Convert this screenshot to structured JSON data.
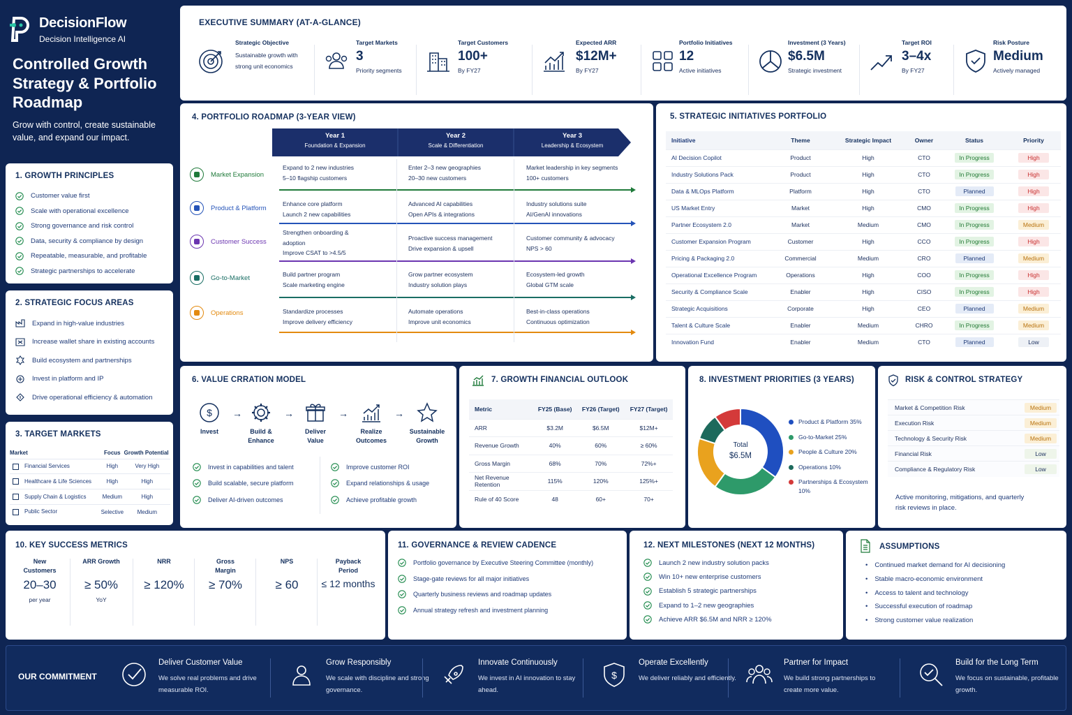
{
  "brand": {
    "name": "DecisionFlow",
    "tagline": "Decision Intelligence AI"
  },
  "page": {
    "title": "Controlled Growth Strategy & Portfolio Roadmap",
    "subtitle": "Grow with control, create sustainable value, and expand our impact."
  },
  "growth_principles": {
    "title": "1.  GROWTH PRINCIPLES",
    "items": [
      "Customer value first",
      "Scale with operational excellence",
      "Strong governance and risk control",
      "Data, security & compliance by design",
      "Repeatable, measurable, and profitable",
      "Strategic partnerships to accelerate"
    ]
  },
  "focus_areas": {
    "title": "2.  STRATEGIC FOCUS AREAS",
    "items": [
      "Expand in high-value industries",
      "Increase wallet share in existing accounts",
      "Build ecosystem and partnerships",
      "Invest in platform and IP",
      "Drive operational efficiency & automation"
    ]
  },
  "target_markets": {
    "title": "3.  TARGET MARKETS",
    "headers": [
      "Market",
      "Focus",
      "Growth Potential"
    ],
    "rows": [
      [
        "Financial Services",
        "High",
        "Very High"
      ],
      [
        "Healthcare & Life Sciences",
        "High",
        "High"
      ],
      [
        "Supply Chain & Logistics",
        "Medium",
        "High"
      ],
      [
        "Public Sector",
        "Selective",
        "Medium"
      ]
    ]
  },
  "exec": {
    "title": "EXECUTIVE SUMMARY (AT-A-GLANCE)",
    "items": [
      {
        "label": "Strategic Objective",
        "text": "Sustainable growth with strong unit economics",
        "icon": "target-icon"
      },
      {
        "label": "Target Markets",
        "value": "3",
        "sub": "Priority segments",
        "icon": "users-icon"
      },
      {
        "label": "Target Customers",
        "value": "100+",
        "sub": "By FY27",
        "icon": "building-icon"
      },
      {
        "label": "Expected ARR",
        "value": "$12M+",
        "sub": "By FY27",
        "icon": "growth-chart-icon"
      },
      {
        "label": "Portfolio Initiatives",
        "value": "12",
        "sub": "Active initiatives",
        "icon": "grid-icon"
      },
      {
        "label": "Investment (3 Years)",
        "value": "$6.5M",
        "sub": "Strategic investment",
        "icon": "pie-icon"
      },
      {
        "label": "Target ROI",
        "value": "3–4x",
        "sub": "By FY27",
        "icon": "trend-up-icon"
      },
      {
        "label": "Risk Posture",
        "value": "Medium",
        "sub": "Actively managed",
        "icon": "shield-check-icon"
      }
    ]
  },
  "roadmap": {
    "title": "4.  PORTFOLIO ROADMAP (3-YEAR VIEW)",
    "years": [
      {
        "name": "Year 1",
        "sub": "Foundation & Expansion"
      },
      {
        "name": "Year 2",
        "sub": "Scale & Differentiation"
      },
      {
        "name": "Year 3",
        "sub": "Leadership & Ecosystem"
      }
    ],
    "rows": [
      {
        "name": "Market Expansion",
        "color": "#1f7a3a",
        "cells": [
          "Expand to 2 new industries\n5–10 flagship customers",
          "Enter 2–3 new geographies\n20–30 new customers",
          "Market leadership in key segments\n100+ customers"
        ]
      },
      {
        "name": "Product & Platform",
        "color": "#2453b8",
        "cells": [
          "Enhance core platform\nLaunch 2 new capabilities",
          "Advanced AI capabilities\nOpen APIs & integrations",
          "Industry solutions suite\nAI/GenAI innovations"
        ]
      },
      {
        "name": "Customer Success",
        "color": "#6b35b0",
        "cells": [
          "Strengthen onboarding &\nadoption\nImprove CSAT to >4.5/5",
          "Proactive success management\nDrive expansion & upsell",
          "Customer community & advocacy\nNPS > 60"
        ]
      },
      {
        "name": "Go-to-Market",
        "color": "#1a6e64",
        "cells": [
          "Build partner program\nScale marketing engine",
          "Grow partner ecosystem\nIndustry solution plays",
          "Ecosystem-led growth\nGlobal GTM scale"
        ]
      },
      {
        "name": "Operations",
        "color": "#e38a0f",
        "cells": [
          "Standardize processes\nImprove delivery efficiency",
          "Automate operations\nImprove unit economics",
          "Best-in-class operations\nContinuous optimization"
        ]
      }
    ]
  },
  "initiatives": {
    "title": "5.  STRATEGIC INITIATIVES PORTFOLIO",
    "headers": [
      "Initiative",
      "Theme",
      "Strategic Impact",
      "Owner",
      "Status",
      "Priority"
    ],
    "rows": [
      [
        "AI Decision Copilot",
        "Product",
        "High",
        "CTO",
        "In Progress",
        "High"
      ],
      [
        "Industry Solutions Pack",
        "Product",
        "High",
        "CTO",
        "In Progress",
        "High"
      ],
      [
        "Data & MLOps Platform",
        "Platform",
        "High",
        "CTO",
        "Planned",
        "High"
      ],
      [
        "US Market Entry",
        "Market",
        "High",
        "CMO",
        "In Progress",
        "High"
      ],
      [
        "Partner Ecosystem 2.0",
        "Market",
        "Medium",
        "CMO",
        "In Progress",
        "Medium"
      ],
      [
        "Customer Expansion Program",
        "Customer",
        "High",
        "CCO",
        "In Progress",
        "High"
      ],
      [
        "Pricing & Packaging 2.0",
        "Commercial",
        "Medium",
        "CRO",
        "Planned",
        "Medium"
      ],
      [
        "Operational Excellence Program",
        "Operations",
        "High",
        "COO",
        "In Progress",
        "High"
      ],
      [
        "Security & Compliance Scale",
        "Enabler",
        "High",
        "CISO",
        "In Progress",
        "High"
      ],
      [
        "Strategic Acquisitions",
        "Corporate",
        "High",
        "CEO",
        "Planned",
        "Medium"
      ],
      [
        "Talent & Culture Scale",
        "Enabler",
        "Medium",
        "CHRO",
        "In Progress",
        "Medium"
      ],
      [
        "Innovation Fund",
        "Enabler",
        "Medium",
        "CTO",
        "Planned",
        "Low"
      ]
    ]
  },
  "value_model": {
    "title": "6.  VALUE CRRATION MODEL",
    "steps": [
      "Invest",
      "Build &\nEnhance",
      "Deliver\nValue",
      "Realize\nOutcomes",
      "Sustainable\nGrowth"
    ],
    "left": [
      "Invest in capabilities and talent",
      "Build scalable, secure platform",
      "Deliver AI-driven outcomes"
    ],
    "right": [
      "Improve customer ROI",
      "Expand relationships & usage",
      "Achieve profitable growth"
    ]
  },
  "financial": {
    "title": "7.  GROWTH FINANCIAL OUTLOOK",
    "headers": [
      "Metric",
      "FY25 (Base)",
      "FY26 (Target)",
      "FY27 (Target)"
    ],
    "rows": [
      [
        "ARR",
        "$3.2M",
        "$6.5M",
        "$12M+"
      ],
      [
        "Revenue Growth",
        "40%",
        "60%",
        "≥ 60%"
      ],
      [
        "Gross Margin",
        "68%",
        "70%",
        "72%+"
      ],
      [
        "Net Revenue Retention",
        "115%",
        "120%",
        "125%+"
      ],
      [
        "Rule of 40 Score",
        "48",
        "60+",
        "70+"
      ]
    ]
  },
  "investment": {
    "title": "8.  INVESTMENT PRIORITIES (3 YEARS)",
    "center_label": "Total",
    "center_value": "$6.5M"
  },
  "chart_data": {
    "type": "pie",
    "title": "",
    "labels": [
      "Product & Platform 35%",
      "Go-to-Market 25%",
      "People & Culture 20%",
      "Operations 10%",
      "Partnerships & Ecosystem 10%"
    ],
    "values": [
      35,
      25,
      20,
      10,
      10
    ],
    "colors": [
      "#1f4fc0",
      "#2e9a6a",
      "#e9a21e",
      "#1d6a5c",
      "#d43a3a"
    ]
  },
  "risk": {
    "title": "RISK & CONTROL STRATEGY",
    "rows": [
      [
        "Market & Competition Risk",
        "Medium"
      ],
      [
        "Execution Risk",
        "Medium"
      ],
      [
        "Technology & Security Risk",
        "Medium"
      ],
      [
        "Financial Risk",
        "Low"
      ],
      [
        "Compliance & Regulatory Risk",
        "Low"
      ]
    ],
    "note": "Active monitoring, mitigations, and quarterly risk reviews in place."
  },
  "metrics": {
    "title": "10.  KEY SUCCESS METRICS",
    "items": [
      {
        "label": "New\nCustomers",
        "value": "20–30",
        "sub": "per year"
      },
      {
        "label": "ARR Growth",
        "value": "≥ 50%",
        "sub": "YoY"
      },
      {
        "label": "NRR",
        "value": "≥ 120%",
        "sub": ""
      },
      {
        "label": "Gross\nMargin",
        "value": "≥ 70%",
        "sub": ""
      },
      {
        "label": "NPS",
        "value": "≥ 60",
        "sub": ""
      },
      {
        "label": "Payback\nPeriod",
        "value": "≤ 12 months",
        "sub": ""
      }
    ]
  },
  "governance": {
    "title": "11.  GOVERNANCE & REVIEW CADENCE",
    "items": [
      "Portfolio governance by Executive Steering Committee (monthly)",
      "Stage-gate reviews for all major initiatives",
      "Quarterly business reviews and roadmap updates",
      "Annual strategy refresh and investment planning"
    ]
  },
  "milestones": {
    "title": "12.  NEXT MILESTONES (NEXT 12 MONTHS)",
    "items": [
      "Launch 2 new industry solution packs",
      "Win 10+ new enterprise customers",
      "Establish 5 strategic partnerships",
      "Expand to 1–2 new geographies",
      "Achieve ARR $6.5M and NRR ≥ 120%"
    ]
  },
  "assumptions": {
    "title": "ASSUMPTIONS",
    "items": [
      "Continued market demand for AI decisioning",
      "Stable macro-economic environment",
      "Access to talent and technology",
      "Successful execution of roadmap",
      "Strong customer value realization"
    ]
  },
  "commitment": {
    "title": "OUR COMMITMENT",
    "items": [
      {
        "title": "Deliver Customer Value",
        "desc": "We solve real problems and drive measurable ROI.",
        "icon": "check-circle-icon"
      },
      {
        "title": "Grow Responsibly",
        "desc": "We scale with discipline and strong governance.",
        "icon": "person-icon"
      },
      {
        "title": "Innovate Continuously",
        "desc": "We invest in AI innovation to stay ahead.",
        "icon": "rocket-icon"
      },
      {
        "title": "Operate Excellently",
        "desc": "We deliver reliably and efficiently.",
        "icon": "shield-dollar-icon"
      },
      {
        "title": "Partner for Impact",
        "desc": "We build strong partnerships to create more value.",
        "icon": "team-icon"
      },
      {
        "title": "Build for the Long Term",
        "desc": "We focus on sustainable, profitable growth.",
        "icon": "search-check-icon"
      }
    ]
  }
}
